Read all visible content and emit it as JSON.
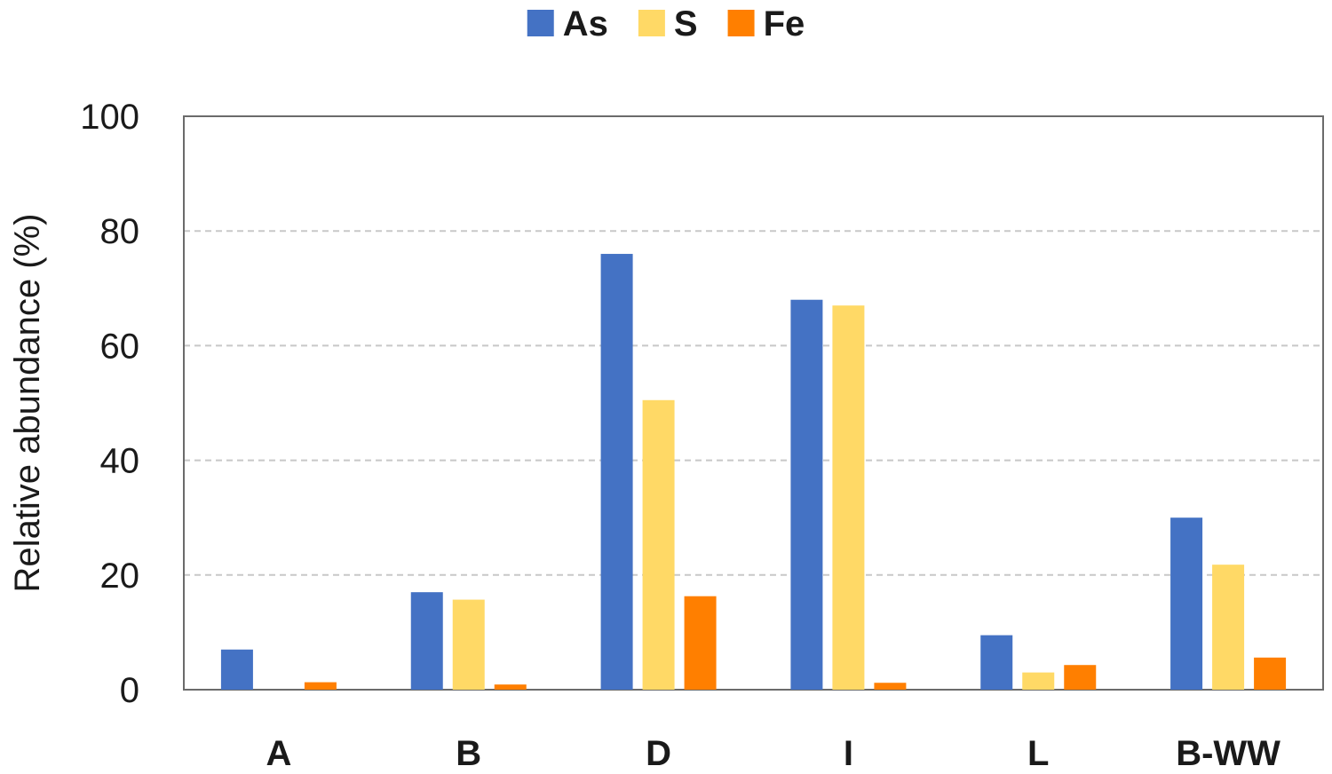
{
  "chart_data": {
    "type": "bar",
    "categories": [
      "A",
      "B",
      "D",
      "I",
      "L",
      "B-WW"
    ],
    "series": [
      {
        "name": "As",
        "color": "#4472C4",
        "values": [
          7,
          17,
          76,
          68,
          9.5,
          30
        ]
      },
      {
        "name": "S",
        "color": "#FFD966",
        "values": [
          0,
          15.7,
          50.5,
          67,
          3,
          21.8
        ]
      },
      {
        "name": "Fe",
        "color": "#FF7F00",
        "values": [
          1.3,
          0.9,
          16.3,
          1.2,
          4.3,
          5.6
        ]
      }
    ],
    "title": "",
    "xlabel": "",
    "ylabel": "Relative abundance (%)",
    "ylim": [
      0,
      100
    ],
    "yticks": [
      0,
      20,
      40,
      60,
      80,
      100
    ],
    "ytick_labels": [
      "0",
      "20",
      "40",
      "60",
      "80",
      "100"
    ],
    "grid": "horizontal dashed",
    "legend_position": "top-center"
  }
}
